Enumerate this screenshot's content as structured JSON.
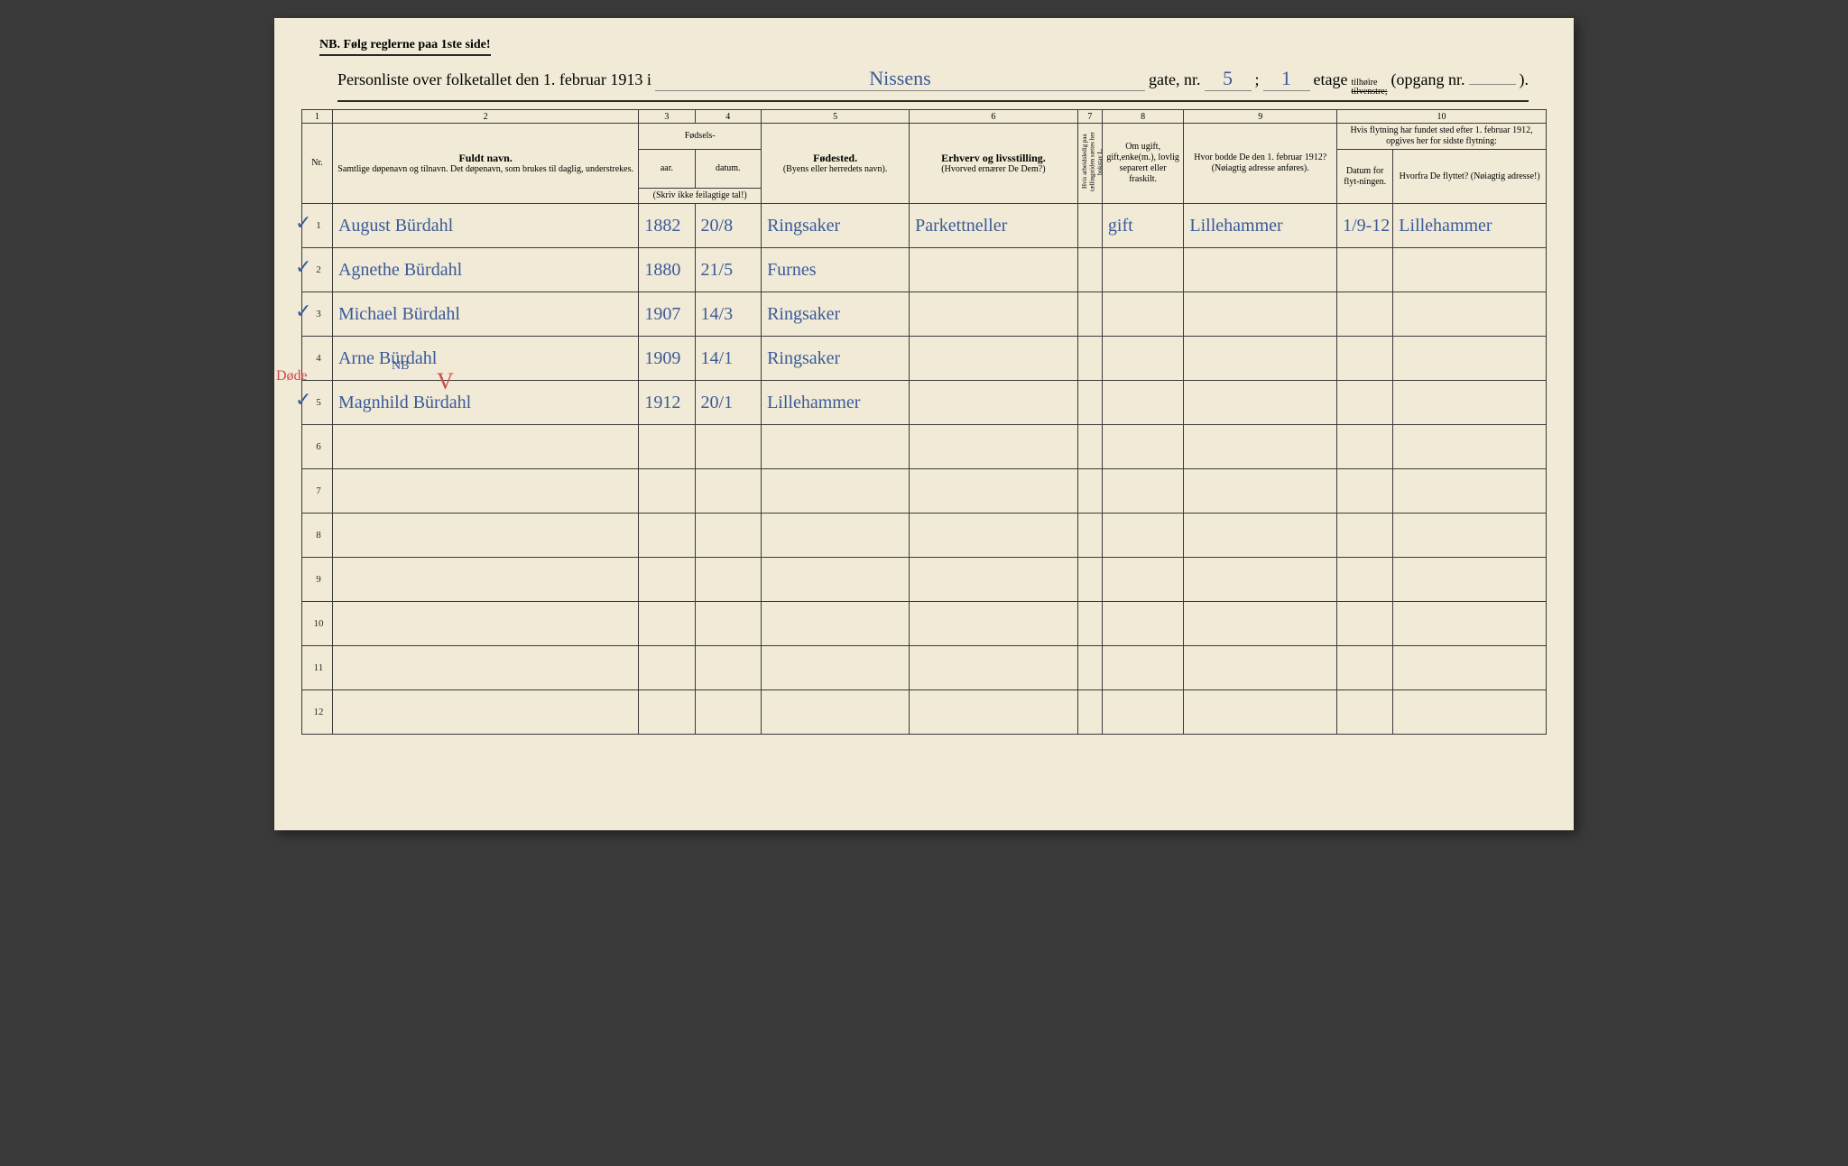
{
  "nb_text": "NB.  Følg reglerne paa 1ste side!",
  "header": {
    "prefix": "Personliste over folketallet den 1. februar 1913 i",
    "street": "Nissens",
    "gate_label": "gate, nr.",
    "gate_nr": "5",
    "semicolon": ";",
    "etage_nr": "1",
    "etage_label": "etage",
    "tilhoire": "tilhøire",
    "tilvenstre": "tilvenstre;",
    "opgang": "(opgang nr.",
    "opgang_nr": "",
    "close": ")."
  },
  "colnums": [
    "1",
    "2",
    "3",
    "4",
    "5",
    "6",
    "7",
    "8",
    "9",
    "10"
  ],
  "headers": {
    "nr": "Nr.",
    "fuldt_navn": "Fuldt navn.",
    "name_sub": "Samtlige døpenavn og tilnavn. Det døpenavn, som brukes til daglig, understrekes.",
    "fodsels": "Fødsels-",
    "aar": "aar.",
    "datum": "datum.",
    "aar_sub": "(Skriv ikke feilagtige tal!)",
    "fodested": "Fødested.",
    "fodested_sub": "(Byens eller herredets navn).",
    "erhverv": "Erhverv og livsstilling.",
    "erhverv_sub": "(Hvorved ernærer De Dem?)",
    "col7": "Hvis arbeidsledig paa tællingstiden sættes her bokstav L.",
    "marital": "Om ugift, gift,enke(m.), lovlig separert eller fraskilt.",
    "prev_addr": "Hvor bodde De den 1. februar 1912?",
    "prev_addr_sub": "(Nøiagtig adresse anføres).",
    "move_title": "Hvis flytning har fundet sted efter 1. februar 1912, opgives her for sidste flytning:",
    "move_date": "Datum for flyt-ningen.",
    "move_from": "Hvorfra De flyttet? (Nøiagtig adresse!)"
  },
  "rows": [
    {
      "nr": "1",
      "check": "✓",
      "name": "August Bürdahl",
      "year": "1882",
      "date": "20/8",
      "birthplace": "Ringsaker",
      "occupation": "Parkettneller",
      "col7": "",
      "marital": "gift",
      "prev": "Lillehammer",
      "movedate": "1/9-12",
      "movefrom": "Lillehammer"
    },
    {
      "nr": "2",
      "check": "✓",
      "name": "Agnethe Bürdahl",
      "year": "1880",
      "date": "21/5",
      "birthplace": "Furnes",
      "occupation": "",
      "col7": "",
      "marital": "",
      "prev": "",
      "movedate": "",
      "movefrom": ""
    },
    {
      "nr": "3",
      "check": "✓",
      "name": "Michael Bürdahl",
      "year": "1907",
      "date": "14/3",
      "birthplace": "Ringsaker",
      "occupation": "",
      "col7": "",
      "marital": "",
      "prev": "",
      "movedate": "",
      "movefrom": ""
    },
    {
      "nr": "4",
      "check": "",
      "name": "Arne  Bürdahl",
      "year": "1909",
      "date": "14/1",
      "birthplace": "Ringsaker",
      "occupation": "",
      "col7": "",
      "marital": "",
      "prev": "",
      "movedate": "",
      "movefrom": ""
    },
    {
      "nr": "5",
      "check": "✓",
      "name": "Magnhild Bürdahl",
      "year": "1912",
      "date": "20/1",
      "birthplace": "Lillehammer",
      "occupation": "",
      "col7": "",
      "marital": "",
      "prev": "",
      "movedate": "",
      "movefrom": ""
    },
    {
      "nr": "6",
      "check": "",
      "name": "",
      "year": "",
      "date": "",
      "birthplace": "",
      "occupation": "",
      "col7": "",
      "marital": "",
      "prev": "",
      "movedate": "",
      "movefrom": ""
    },
    {
      "nr": "7",
      "check": "",
      "name": "",
      "year": "",
      "date": "",
      "birthplace": "",
      "occupation": "",
      "col7": "",
      "marital": "",
      "prev": "",
      "movedate": "",
      "movefrom": ""
    },
    {
      "nr": "8",
      "check": "",
      "name": "",
      "year": "",
      "date": "",
      "birthplace": "",
      "occupation": "",
      "col7": "",
      "marital": "",
      "prev": "",
      "movedate": "",
      "movefrom": ""
    },
    {
      "nr": "9",
      "check": "",
      "name": "",
      "year": "",
      "date": "",
      "birthplace": "",
      "occupation": "",
      "col7": "",
      "marital": "",
      "prev": "",
      "movedate": "",
      "movefrom": ""
    },
    {
      "nr": "10",
      "check": "",
      "name": "",
      "year": "",
      "date": "",
      "birthplace": "",
      "occupation": "",
      "col7": "",
      "marital": "",
      "prev": "",
      "movedate": "",
      "movefrom": ""
    },
    {
      "nr": "11",
      "check": "",
      "name": "",
      "year": "",
      "date": "",
      "birthplace": "",
      "occupation": "",
      "col7": "",
      "marital": "",
      "prev": "",
      "movedate": "",
      "movefrom": ""
    },
    {
      "nr": "12",
      "check": "",
      "name": "",
      "year": "",
      "date": "",
      "birthplace": "",
      "occupation": "",
      "col7": "",
      "marital": "",
      "prev": "",
      "movedate": "",
      "movefrom": ""
    }
  ],
  "margin_notes": {
    "dode": "Døde",
    "nb": "NB",
    "v": "V"
  }
}
